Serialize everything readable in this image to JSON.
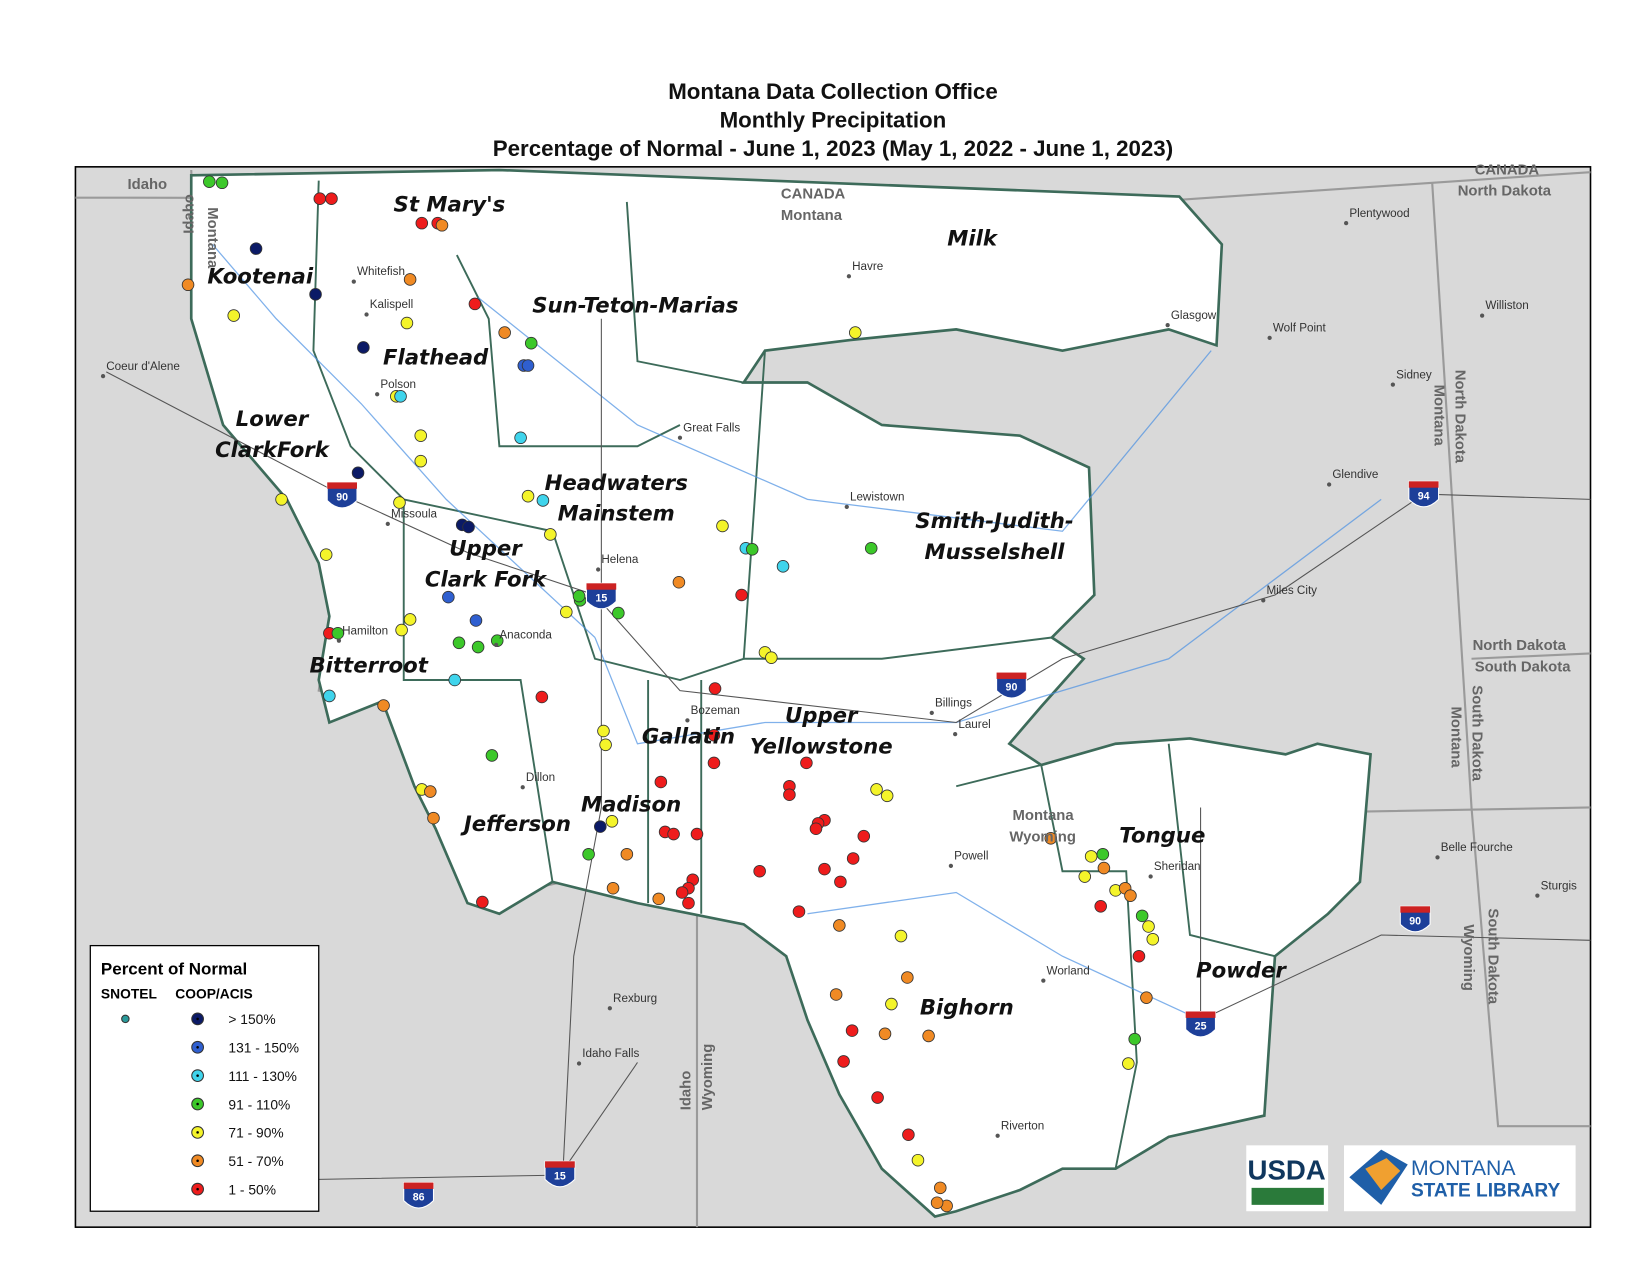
{
  "title": [
    "Montana Data Collection Office",
    "Monthly Precipitation",
    "Percentage of Normal - June 1, 2023 (May 1, 2022 - June 1, 2023)"
  ],
  "basins": [
    {
      "lines": [
        "Kootenai"
      ]
    },
    {
      "lines": [
        "St Mary's"
      ]
    },
    {
      "lines": [
        "Sun-Teton-Marias"
      ]
    },
    {
      "lines": [
        "Milk"
      ]
    },
    {
      "lines": [
        "Flathead"
      ]
    },
    {
      "lines": [
        "Lower",
        "ClarkFork"
      ]
    },
    {
      "lines": [
        "Headwaters",
        "Mainstem"
      ]
    },
    {
      "lines": [
        "Upper",
        "Clark Fork"
      ]
    },
    {
      "lines": [
        "Smith-Judith-",
        "Musselshell"
      ]
    },
    {
      "lines": [
        "Bitterroot"
      ]
    },
    {
      "lines": [
        "Gallatin"
      ]
    },
    {
      "lines": [
        "Upper",
        "Yellowstone"
      ]
    },
    {
      "lines": [
        "Madison"
      ]
    },
    {
      "lines": [
        "Jefferson"
      ]
    },
    {
      "lines": [
        "Tongue"
      ]
    },
    {
      "lines": [
        "Powder"
      ]
    },
    {
      "lines": [
        "Bighorn"
      ]
    }
  ],
  "places": [
    "Idaho",
    "CANADA",
    "Montana",
    "CANADA",
    "North Dakota",
    "Plentywood",
    "Havre",
    "Glasgow",
    "Wolf Point",
    "Williston",
    "Sidney",
    "Whitefish",
    "Kalispell",
    "Polson",
    "Coeur d'Alene",
    "Great Falls",
    "Lewistown",
    "Glendive",
    "Missoula",
    "Helena",
    "Miles City",
    "Hamilton",
    "Anaconda",
    "Bozeman",
    "Billings",
    "Laurel",
    "Dillon",
    "Powell",
    "Sheridan",
    "Belle Fourche",
    "Sturgis",
    "Worland",
    "Rexburg",
    "Idaho Falls",
    "Riverton",
    "North Dakota",
    "South Dakota",
    "Montana",
    "Wyoming",
    "Idaho",
    "Montana",
    "North Dakota",
    "Montana",
    "South Dakota",
    "Montana",
    "South Dakota",
    "Wyoming",
    "Idaho",
    "Wyoming"
  ],
  "interstates": [
    "90",
    "15",
    "94",
    "90",
    "90",
    "25",
    "15",
    "86"
  ],
  "legend": {
    "title": "Percent of Normal",
    "columns": [
      "SNOTEL",
      "COOP/ACIS"
    ],
    "classes": [
      {
        "label": "> 150%",
        "color": "#0b1a66"
      },
      {
        "label": "131 - 150%",
        "color": "#2f5fd0"
      },
      {
        "label": "111 - 130%",
        "color": "#3fd4ec"
      },
      {
        "label": "91 - 110%",
        "color": "#3cc82a"
      },
      {
        "label": "71 - 90%",
        "color": "#f4f42a"
      },
      {
        "label": "51 - 70%",
        "color": "#f08a24"
      },
      {
        "label": "1 - 50%",
        "color": "#ee1c1c"
      }
    ]
  },
  "logos": {
    "usda": "USDA",
    "library": [
      "MONTANA",
      "STATE LIBRARY"
    ]
  }
}
